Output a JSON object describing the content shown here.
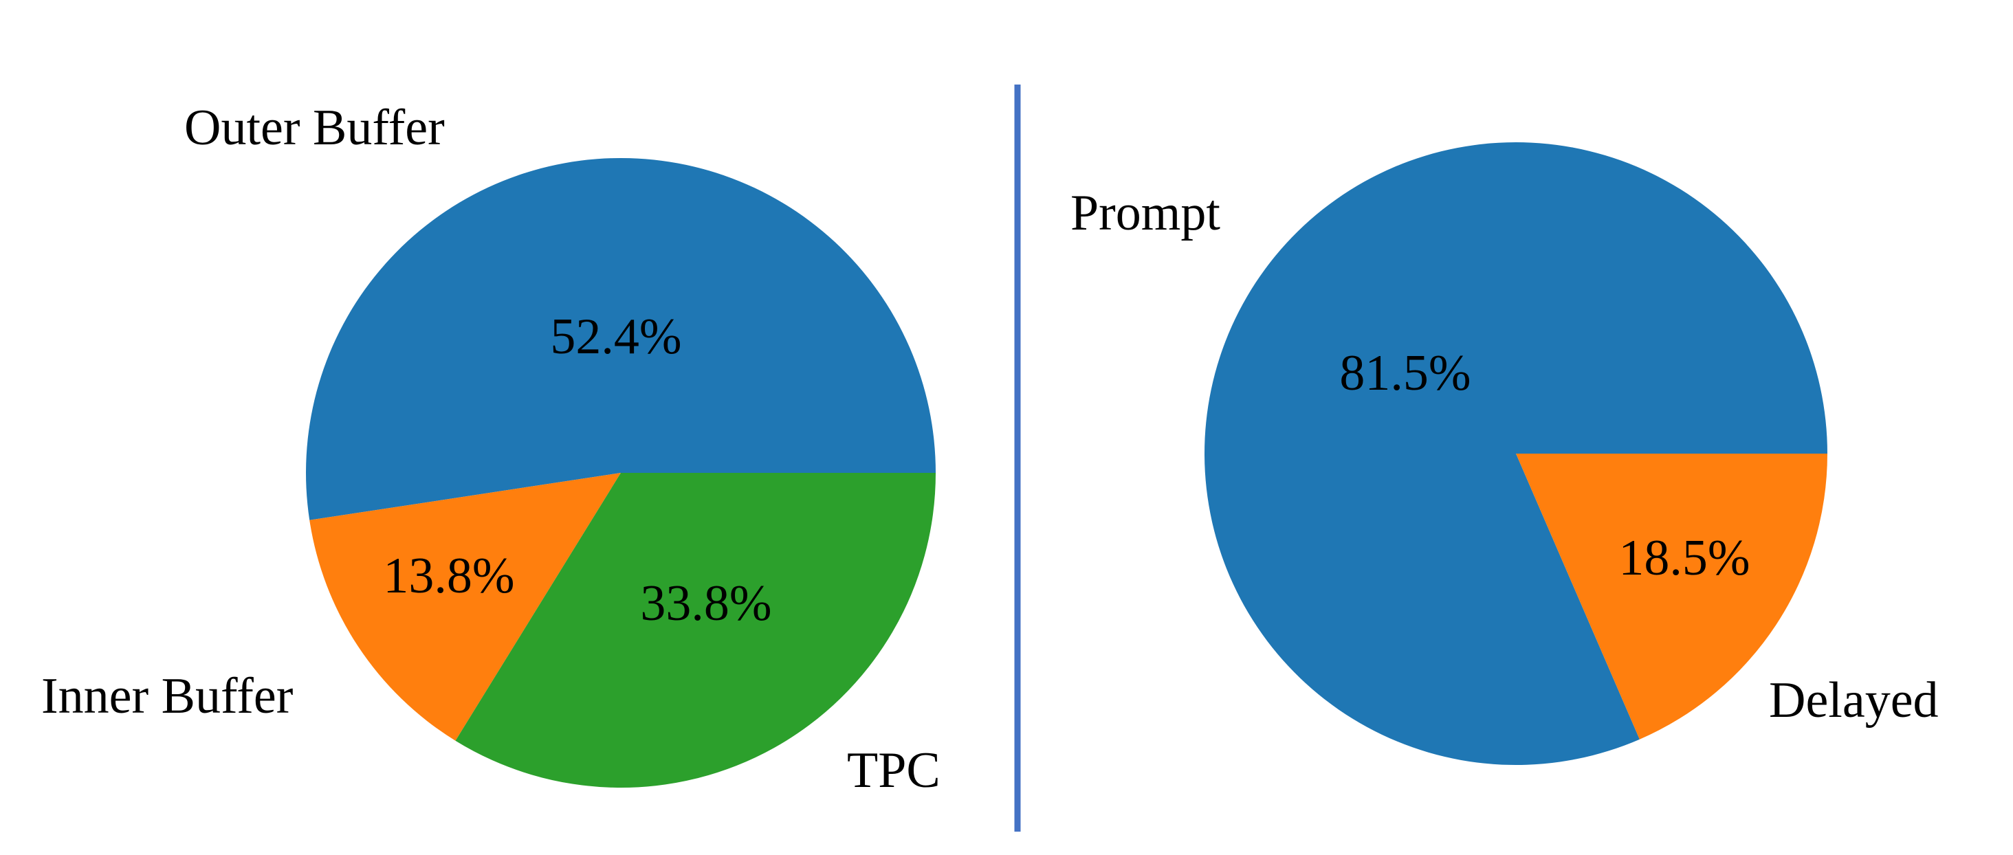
{
  "chart_data": [
    {
      "type": "pie",
      "slices": [
        {
          "label": "Outer Buffer",
          "value": 52.4,
          "pct_label": "52.4%",
          "color": "#1f77b4"
        },
        {
          "label": "Inner Buffer",
          "value": 13.8,
          "pct_label": "13.8%",
          "color": "#ff7f0e"
        },
        {
          "label": "TPC",
          "value": 33.8,
          "pct_label": "33.8%",
          "color": "#2ca02c"
        }
      ]
    },
    {
      "type": "pie",
      "slices": [
        {
          "label": "Prompt",
          "value": 81.5,
          "pct_label": "81.5%",
          "color": "#1f77b4"
        },
        {
          "label": "Delayed",
          "value": 18.5,
          "pct_label": "18.5%",
          "color": "#ff7f0e"
        }
      ]
    }
  ],
  "divider": {
    "color": "#4472c4"
  }
}
